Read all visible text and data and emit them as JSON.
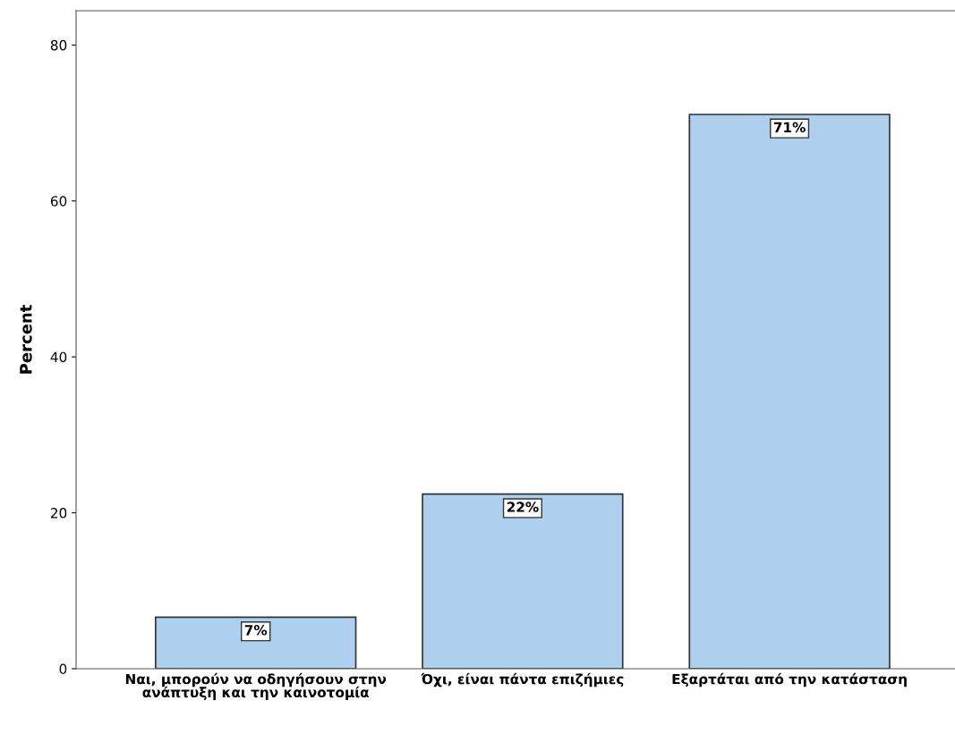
{
  "chart_data": {
    "type": "bar",
    "ylabel": "Percent",
    "categories": [
      "Ναι, μπορούν να οδηγήσουν στην ανάπτυξη και την καινοτομία",
      "Όχι, είναι πάντα επιζήμιες",
      "Εξαρτάται από την κατάσταση"
    ],
    "values": [
      6.6,
      22.4,
      71.1
    ],
    "value_labels": [
      "7%",
      "22%",
      "71%"
    ],
    "color": "#aed0ee",
    "ylim": [
      0,
      84.4
    ],
    "yticks": [
      0,
      20,
      40,
      60,
      80
    ],
    "grid": false
  }
}
